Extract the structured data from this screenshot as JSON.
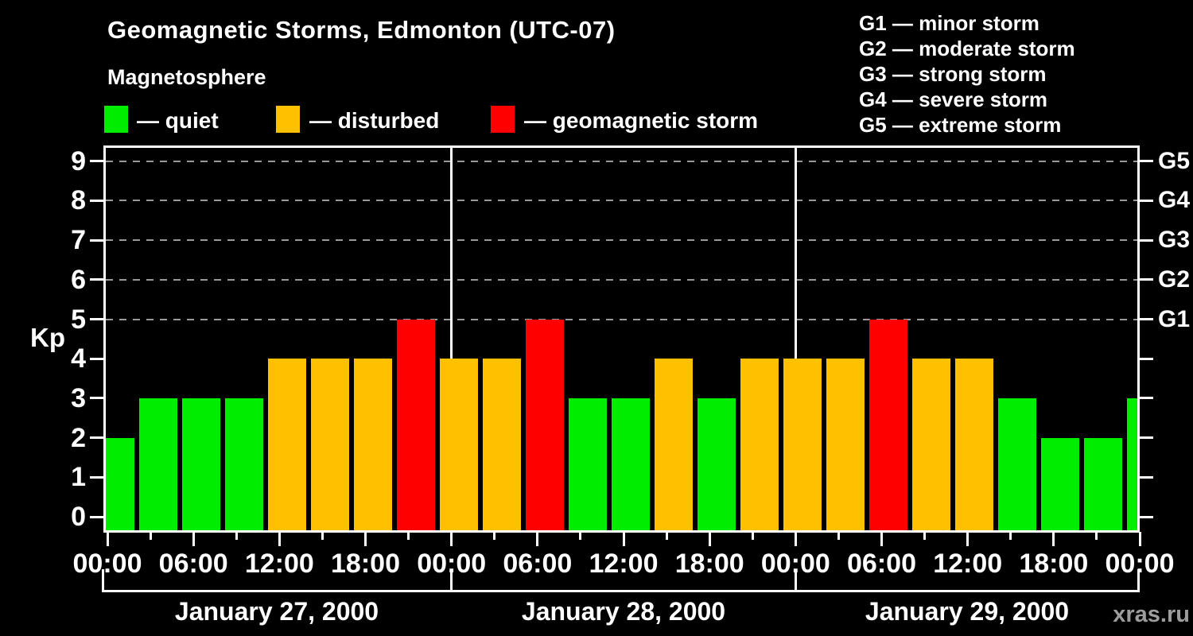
{
  "header": {
    "title": "Geomagnetic Storms, Edmonton (UTC-07)",
    "subtitle": "Magnetosphere"
  },
  "legend": {
    "items": [
      {
        "key": "quiet",
        "label": "— quiet",
        "color": "#00ed00"
      },
      {
        "key": "disturbed",
        "label": "— disturbed",
        "color": "#ffc000"
      },
      {
        "key": "storm",
        "label": "— geomagnetic storm",
        "color": "#ff0000"
      }
    ]
  },
  "g_scale_legend": {
    "items": [
      "G1 — minor storm",
      "G2 — moderate storm",
      "G3 — strong storm",
      "G4 — severe storm",
      "G5 — extreme storm"
    ]
  },
  "watermark": "xras.ru",
  "chart_data": {
    "type": "bar",
    "title": "Geomagnetic Storms, Edmonton (UTC-07)",
    "subtitle": "Magnetosphere",
    "ylabel": "Kp",
    "ylim": [
      0,
      9
    ],
    "y_ticks": [
      0,
      1,
      2,
      3,
      4,
      5,
      6,
      7,
      8,
      9
    ],
    "grid_dashed_levels": [
      5,
      6,
      7,
      8,
      9
    ],
    "right_axis": [
      {
        "kp": 5,
        "label": "G1"
      },
      {
        "kp": 6,
        "label": "G2"
      },
      {
        "kp": 7,
        "label": "G3"
      },
      {
        "kp": 8,
        "label": "G4"
      },
      {
        "kp": 9,
        "label": "G5"
      }
    ],
    "x_tick_labels": [
      "00:00",
      "06:00",
      "12:00",
      "18:00",
      "00:00",
      "06:00",
      "12:00",
      "18:00",
      "00:00",
      "06:00",
      "12:00",
      "18:00",
      "00:00"
    ],
    "interval_hours": 3,
    "days": [
      {
        "label": "January 27, 2000",
        "kp": [
          2,
          3,
          3,
          3,
          4,
          4,
          4,
          5
        ]
      },
      {
        "label": "January 28, 2000",
        "kp": [
          4,
          4,
          5,
          3,
          3,
          4,
          3,
          4
        ]
      },
      {
        "label": "January 29, 2000",
        "kp": [
          4,
          4,
          5,
          4,
          4,
          3,
          2,
          2
        ]
      }
    ],
    "next_day_partial_kp": 3,
    "day_boundary_hours": [
      24,
      48
    ],
    "color_rules": {
      "quiet_kp_max": 3,
      "storm_kp_min": 5
    },
    "colors": {
      "quiet": "#00ed00",
      "disturbed": "#ffc000",
      "storm": "#ff0000",
      "axis": "#ffffff",
      "grid": "#999999",
      "watermark": "#9c9c9c",
      "background": "#000000"
    }
  }
}
